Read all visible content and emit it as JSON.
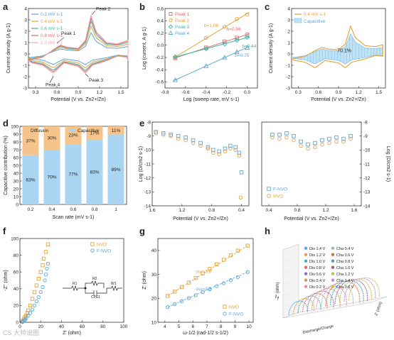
{
  "watermark": "CS 大帅说图",
  "panels": [
    {
      "letter": "a"
    },
    {
      "letter": "b"
    },
    {
      "letter": "c"
    },
    {
      "letter": "d"
    },
    {
      "letter": "e"
    },
    {
      "letter": "f"
    },
    {
      "letter": "g"
    },
    {
      "letter": "h"
    }
  ],
  "chart_data": [
    {
      "id": "a",
      "type": "line",
      "xlabel": "Potential (V vs. Zn2+/Zn)",
      "ylabel": "Current density (A g-1)",
      "xlim": [
        0.2,
        1.6
      ],
      "ylim": [
        -3,
        4
      ],
      "xticks": [
        "0.3",
        "0.6",
        "0.9",
        "1.2",
        "1.5"
      ],
      "yticks": [
        "-3",
        "-2",
        "-1",
        "0",
        "1",
        "2",
        "3",
        "4"
      ],
      "annotations": [
        "Peak 1",
        "Peak 2",
        "Peak 3",
        "Peak 4"
      ],
      "series": [
        {
          "name": "0.2 mV s-1",
          "color": "#5aa6d8",
          "scale": 0.55
        },
        {
          "name": "0.4 mV s-1",
          "color": "#e5a23c",
          "scale": 0.72
        },
        {
          "name": "0.6 mV s-1",
          "color": "#3fb5ad",
          "scale": 0.85
        },
        {
          "name": "0.8 mV s-1",
          "color": "#e26a6a",
          "scale": 0.93
        },
        {
          "name": "1.0 mV s-1",
          "color": "#f0a8b0",
          "scale": 1.0
        }
      ],
      "shape": {
        "oxidation": [
          [
            0.2,
            -0.6
          ],
          [
            0.4,
            -0.3
          ],
          [
            0.55,
            0.4
          ],
          [
            0.65,
            0.8
          ],
          [
            0.75,
            0.6
          ],
          [
            0.9,
            0.5
          ],
          [
            1.0,
            1.2
          ],
          [
            1.08,
            3.4
          ],
          [
            1.15,
            2.0
          ],
          [
            1.3,
            1.0
          ],
          [
            1.45,
            0.9
          ],
          [
            1.6,
            1.2
          ]
        ],
        "reduction": [
          [
            1.6,
            -0.3
          ],
          [
            1.45,
            -0.2
          ],
          [
            1.3,
            -0.6
          ],
          [
            1.1,
            -1.0
          ],
          [
            1.0,
            -1.7
          ],
          [
            0.9,
            -1.1
          ],
          [
            0.7,
            -0.8
          ],
          [
            0.55,
            -1.7
          ],
          [
            0.4,
            -1.0
          ],
          [
            0.25,
            -0.8
          ],
          [
            0.2,
            -0.6
          ]
        ]
      }
    },
    {
      "id": "b",
      "type": "scatter",
      "xlabel": "Log (sweep rate, mV s-1)",
      "ylabel": "Log (current, A g-1)",
      "xlim": [
        -0.8,
        0.1
      ],
      "ylim": [
        -0.7,
        0.6
      ],
      "xticks": [
        "-0.8",
        "-0.6",
        "-0.4",
        "-0.2",
        "0.0"
      ],
      "yticks": [
        "-0.6",
        "-0.4",
        "-0.2",
        "0.0",
        "0.2",
        "0.4",
        "0.6"
      ],
      "x": [
        -0.7,
        -0.4,
        -0.22,
        -0.1,
        0.0
      ],
      "series": [
        {
          "name": "Peak 1",
          "marker": "square",
          "color": "#e26a6a",
          "values": [
            -0.21,
            -0.04,
            0.06,
            0.12,
            0.17
          ],
          "b_label": "b=0.56"
        },
        {
          "name": "Peak 2",
          "marker": "circle",
          "color": "#e5a23c",
          "values": [
            -0.2,
            0.12,
            0.3,
            0.43,
            0.5
          ],
          "b_label": "b=1.06"
        },
        {
          "name": "Peak 3",
          "marker": "diamond",
          "color": "#3fb5ad",
          "values": [
            -0.19,
            -0.06,
            0.02,
            0.08,
            0.13
          ],
          "b_label": "b=0.44"
        },
        {
          "name": "Peak 4",
          "marker": "triangle",
          "color": "#5aa6d8",
          "values": [
            -0.57,
            -0.34,
            -0.2,
            -0.11,
            -0.04
          ],
          "b_label": "b=0.75"
        }
      ]
    },
    {
      "id": "c",
      "type": "area",
      "xlabel": "Potential (V vs. Zn2+/Zn)",
      "ylabel": "Current density (A g-1)",
      "xlim": [
        0.2,
        1.6
      ],
      "ylim": [
        -3,
        4
      ],
      "xticks": [
        "0.3",
        "0.6",
        "0.9",
        "1.2",
        "1.5"
      ],
      "yticks": [
        "-3",
        "-2",
        "-1",
        "0",
        "1",
        "2",
        "3",
        "4"
      ],
      "legend": [
        "0.4 mV s-1",
        "Capacitive"
      ],
      "annotation": "70.1%"
    },
    {
      "id": "d",
      "type": "bar",
      "xlabel": "Scan rate (mV s-1)",
      "ylabel": "Capacitive contribution (%)",
      "ylim": [
        0,
        100
      ],
      "yticks": [
        "0",
        "10",
        "20",
        "30",
        "40",
        "50",
        "60",
        "70",
        "80",
        "90",
        "100"
      ],
      "categories": [
        "0.2",
        "0.4",
        "0.6",
        "0.8",
        "1"
      ],
      "series": [
        {
          "name": "Capacitive",
          "color": "#a9d4f2",
          "values": [
            63,
            70,
            77,
            83,
            89
          ]
        },
        {
          "name": "Diffusion",
          "color": "#f6c48a",
          "values": [
            37,
            30,
            23,
            17,
            11
          ]
        }
      ],
      "labels_capacitive": [
        "63%",
        "70%",
        "77%",
        "83%",
        "89%"
      ],
      "labels_diffusion": [
        "37%",
        "30%",
        "23%",
        "17%",
        "11%"
      ]
    },
    {
      "id": "e",
      "type": "scatter",
      "xlabel": "Potential (V vs. Zn2+/Zn)",
      "ylabel": "Log (D/cm2 s-1)",
      "ylim": [
        -14,
        -8
      ],
      "yticks": [
        "-8",
        "-9",
        "-10",
        "-11",
        "-12",
        "-13",
        "-14"
      ],
      "left_xticks": [
        "1.6",
        "1.2",
        "0.8",
        "0.4"
      ],
      "right_xticks": [
        "0.4",
        "0.8",
        "1.2",
        "1.6"
      ],
      "legend": [
        "F-NVO",
        "NVO"
      ],
      "series": [
        {
          "name": "F-NVO",
          "color": "#5aa6d8",
          "marker": "square",
          "left": [
            [
              1.55,
              -8.7
            ],
            [
              1.45,
              -8.8
            ],
            [
              1.35,
              -8.9
            ],
            [
              1.25,
              -9.0
            ],
            [
              1.15,
              -9.1
            ],
            [
              1.05,
              -9.3
            ],
            [
              0.95,
              -9.5
            ],
            [
              0.85,
              -9.8
            ],
            [
              0.78,
              -10.0
            ],
            [
              0.7,
              -10.1
            ],
            [
              0.62,
              -9.9
            ],
            [
              0.55,
              -9.7
            ],
            [
              0.48,
              -9.8
            ],
            [
              0.43,
              -10.2
            ],
            [
              0.4,
              -11.6
            ]
          ],
          "right": [
            [
              0.45,
              -8.9
            ],
            [
              0.55,
              -8.9
            ],
            [
              0.65,
              -8.8
            ],
            [
              0.75,
              -9.0
            ],
            [
              0.85,
              -9.4
            ],
            [
              0.95,
              -9.6
            ],
            [
              1.05,
              -9.5
            ],
            [
              1.15,
              -9.3
            ],
            [
              1.25,
              -9.2
            ],
            [
              1.35,
              -9.1
            ],
            [
              1.45,
              -9.2
            ],
            [
              1.55,
              -9.0
            ]
          ]
        },
        {
          "name": "NVO",
          "color": "#e5a23c",
          "marker": "circle",
          "left": [
            [
              1.55,
              -8.8
            ],
            [
              1.45,
              -8.9
            ],
            [
              1.35,
              -9.0
            ],
            [
              1.25,
              -9.2
            ],
            [
              1.15,
              -9.3
            ],
            [
              1.05,
              -9.5
            ],
            [
              0.95,
              -9.7
            ],
            [
              0.85,
              -9.9
            ],
            [
              0.78,
              -10.2
            ],
            [
              0.7,
              -10.3
            ],
            [
              0.62,
              -10.1
            ],
            [
              0.55,
              -9.9
            ],
            [
              0.48,
              -10.0
            ],
            [
              0.43,
              -10.4
            ],
            [
              0.41,
              -13.4
            ]
          ],
          "right": [
            [
              0.45,
              -9.1
            ],
            [
              0.55,
              -9.2
            ],
            [
              0.65,
              -9.1
            ],
            [
              0.75,
              -9.3
            ],
            [
              0.85,
              -9.7
            ],
            [
              0.95,
              -9.9
            ],
            [
              1.05,
              -9.8
            ],
            [
              1.15,
              -9.6
            ],
            [
              1.25,
              -9.5
            ],
            [
              1.35,
              -9.4
            ],
            [
              1.45,
              -9.4
            ],
            [
              1.55,
              -9.2
            ]
          ]
        }
      ]
    },
    {
      "id": "f",
      "type": "scatter",
      "xlabel": "Z' (ohm)",
      "ylabel": "-Z'' (ohm)",
      "xlim": [
        0,
        100
      ],
      "ylim": [
        0,
        100
      ],
      "xticks": [
        "0",
        "20",
        "40",
        "60",
        "80",
        "100"
      ],
      "yticks": [
        "0",
        "20",
        "40",
        "60",
        "80",
        "100"
      ],
      "circuit_labels": [
        "R1",
        "R2",
        "W1",
        "CPE1"
      ],
      "series": [
        {
          "name": "NVO",
          "color": "#e5a23c",
          "marker": "square",
          "points": [
            [
              2,
              0.5
            ],
            [
              3,
              2
            ],
            [
              4,
              4
            ],
            [
              5,
              6
            ],
            [
              6,
              8
            ],
            [
              7,
              11
            ],
            [
              8,
              14
            ],
            [
              10,
              20
            ],
            [
              12,
              28
            ],
            [
              14,
              36
            ],
            [
              16,
              44
            ],
            [
              18,
              52
            ],
            [
              20,
              60
            ],
            [
              22,
              68
            ],
            [
              23,
              76
            ],
            [
              25,
              84
            ],
            [
              27,
              93
            ]
          ]
        },
        {
          "name": "F-NVO",
          "color": "#5aa6d8",
          "marker": "circle",
          "points": [
            [
              2,
              0.3
            ],
            [
              3,
              1
            ],
            [
              4,
              2
            ],
            [
              5,
              3
            ],
            [
              6,
              5
            ],
            [
              8,
              8
            ],
            [
              10,
              11
            ],
            [
              12,
              15
            ],
            [
              14,
              20
            ],
            [
              16,
              25
            ],
            [
              18,
              30
            ],
            [
              20,
              36
            ],
            [
              22,
              42
            ],
            [
              24,
              50
            ],
            [
              25,
              57
            ],
            [
              26,
              64
            ],
            [
              27,
              70
            ]
          ]
        }
      ]
    },
    {
      "id": "g",
      "type": "scatter",
      "xlabel": "ω-1/2 (rad-1/2 s-1/2)",
      "ylabel": "Z' (ohm)",
      "xlim": [
        3.5,
        10.3
      ],
      "ylim": [
        10,
        45
      ],
      "xticks": [
        "4",
        "5",
        "6",
        "7",
        "8",
        "9",
        "10"
      ],
      "yticks": [
        "10",
        "20",
        "30",
        "40"
      ],
      "annotations": [
        "σω=3.8",
        "σω=2.5"
      ],
      "series": [
        {
          "name": "NVO",
          "color": "#e5a23c",
          "marker": "square",
          "points": [
            [
              4.2,
              21
            ],
            [
              4.7,
              22.8
            ],
            [
              5.2,
              24.7
            ],
            [
              5.7,
              26.6
            ],
            [
              6.2,
              28.5
            ],
            [
              6.7,
              30.4
            ],
            [
              7.2,
              32.3
            ],
            [
              7.7,
              34.2
            ],
            [
              8.2,
              36.1
            ],
            [
              8.7,
              38
            ],
            [
              9.2,
              39.9
            ],
            [
              9.9,
              42
            ]
          ]
        },
        {
          "name": "F-NVO",
          "color": "#5aa6d8",
          "marker": "circle",
          "points": [
            [
              4.2,
              16.3
            ],
            [
              4.7,
              17.6
            ],
            [
              5.2,
              18.8
            ],
            [
              5.7,
              20.1
            ],
            [
              6.2,
              21.3
            ],
            [
              6.7,
              22.6
            ],
            [
              7.2,
              23.8
            ],
            [
              7.7,
              25.1
            ],
            [
              8.2,
              26.3
            ],
            [
              8.7,
              27.6
            ],
            [
              9.2,
              28.8
            ],
            [
              9.9,
              31
            ]
          ]
        }
      ]
    },
    {
      "id": "h",
      "type": "line",
      "ylabel": "-Z'' (ohm)",
      "xlabel": "Discharge/Charge",
      "zlabel": "Z' (ohm)",
      "legend_col1": [
        "Dis 1.4 V",
        "Dis 1.2 V",
        "Dis 1.0 V",
        "Dis 0.8 V",
        "Dis 0.6 V",
        "Dis 0.4 V",
        "Dis 0.2 V"
      ],
      "legend_col2": [
        "Cha 0.4 V",
        "Cha 0.6 V",
        "Cha 0.8 V",
        "Cha 1.0 V",
        "Cha 1.2 V",
        "Cha 1.4 V",
        "Cha 1.6 V"
      ],
      "colors_col1": [
        "#5aa6d8",
        "#e5a23c",
        "#3fb5ad",
        "#e26a6a",
        "#8e6fc2",
        "#c6a35a",
        "#e58ab5"
      ],
      "colors_col2": [
        "#9fb7c9",
        "#e06a3a",
        "#4f9ec9",
        "#a65a8c",
        "#b4c85a",
        "#d27fd0",
        "#e0b24a"
      ]
    }
  ]
}
